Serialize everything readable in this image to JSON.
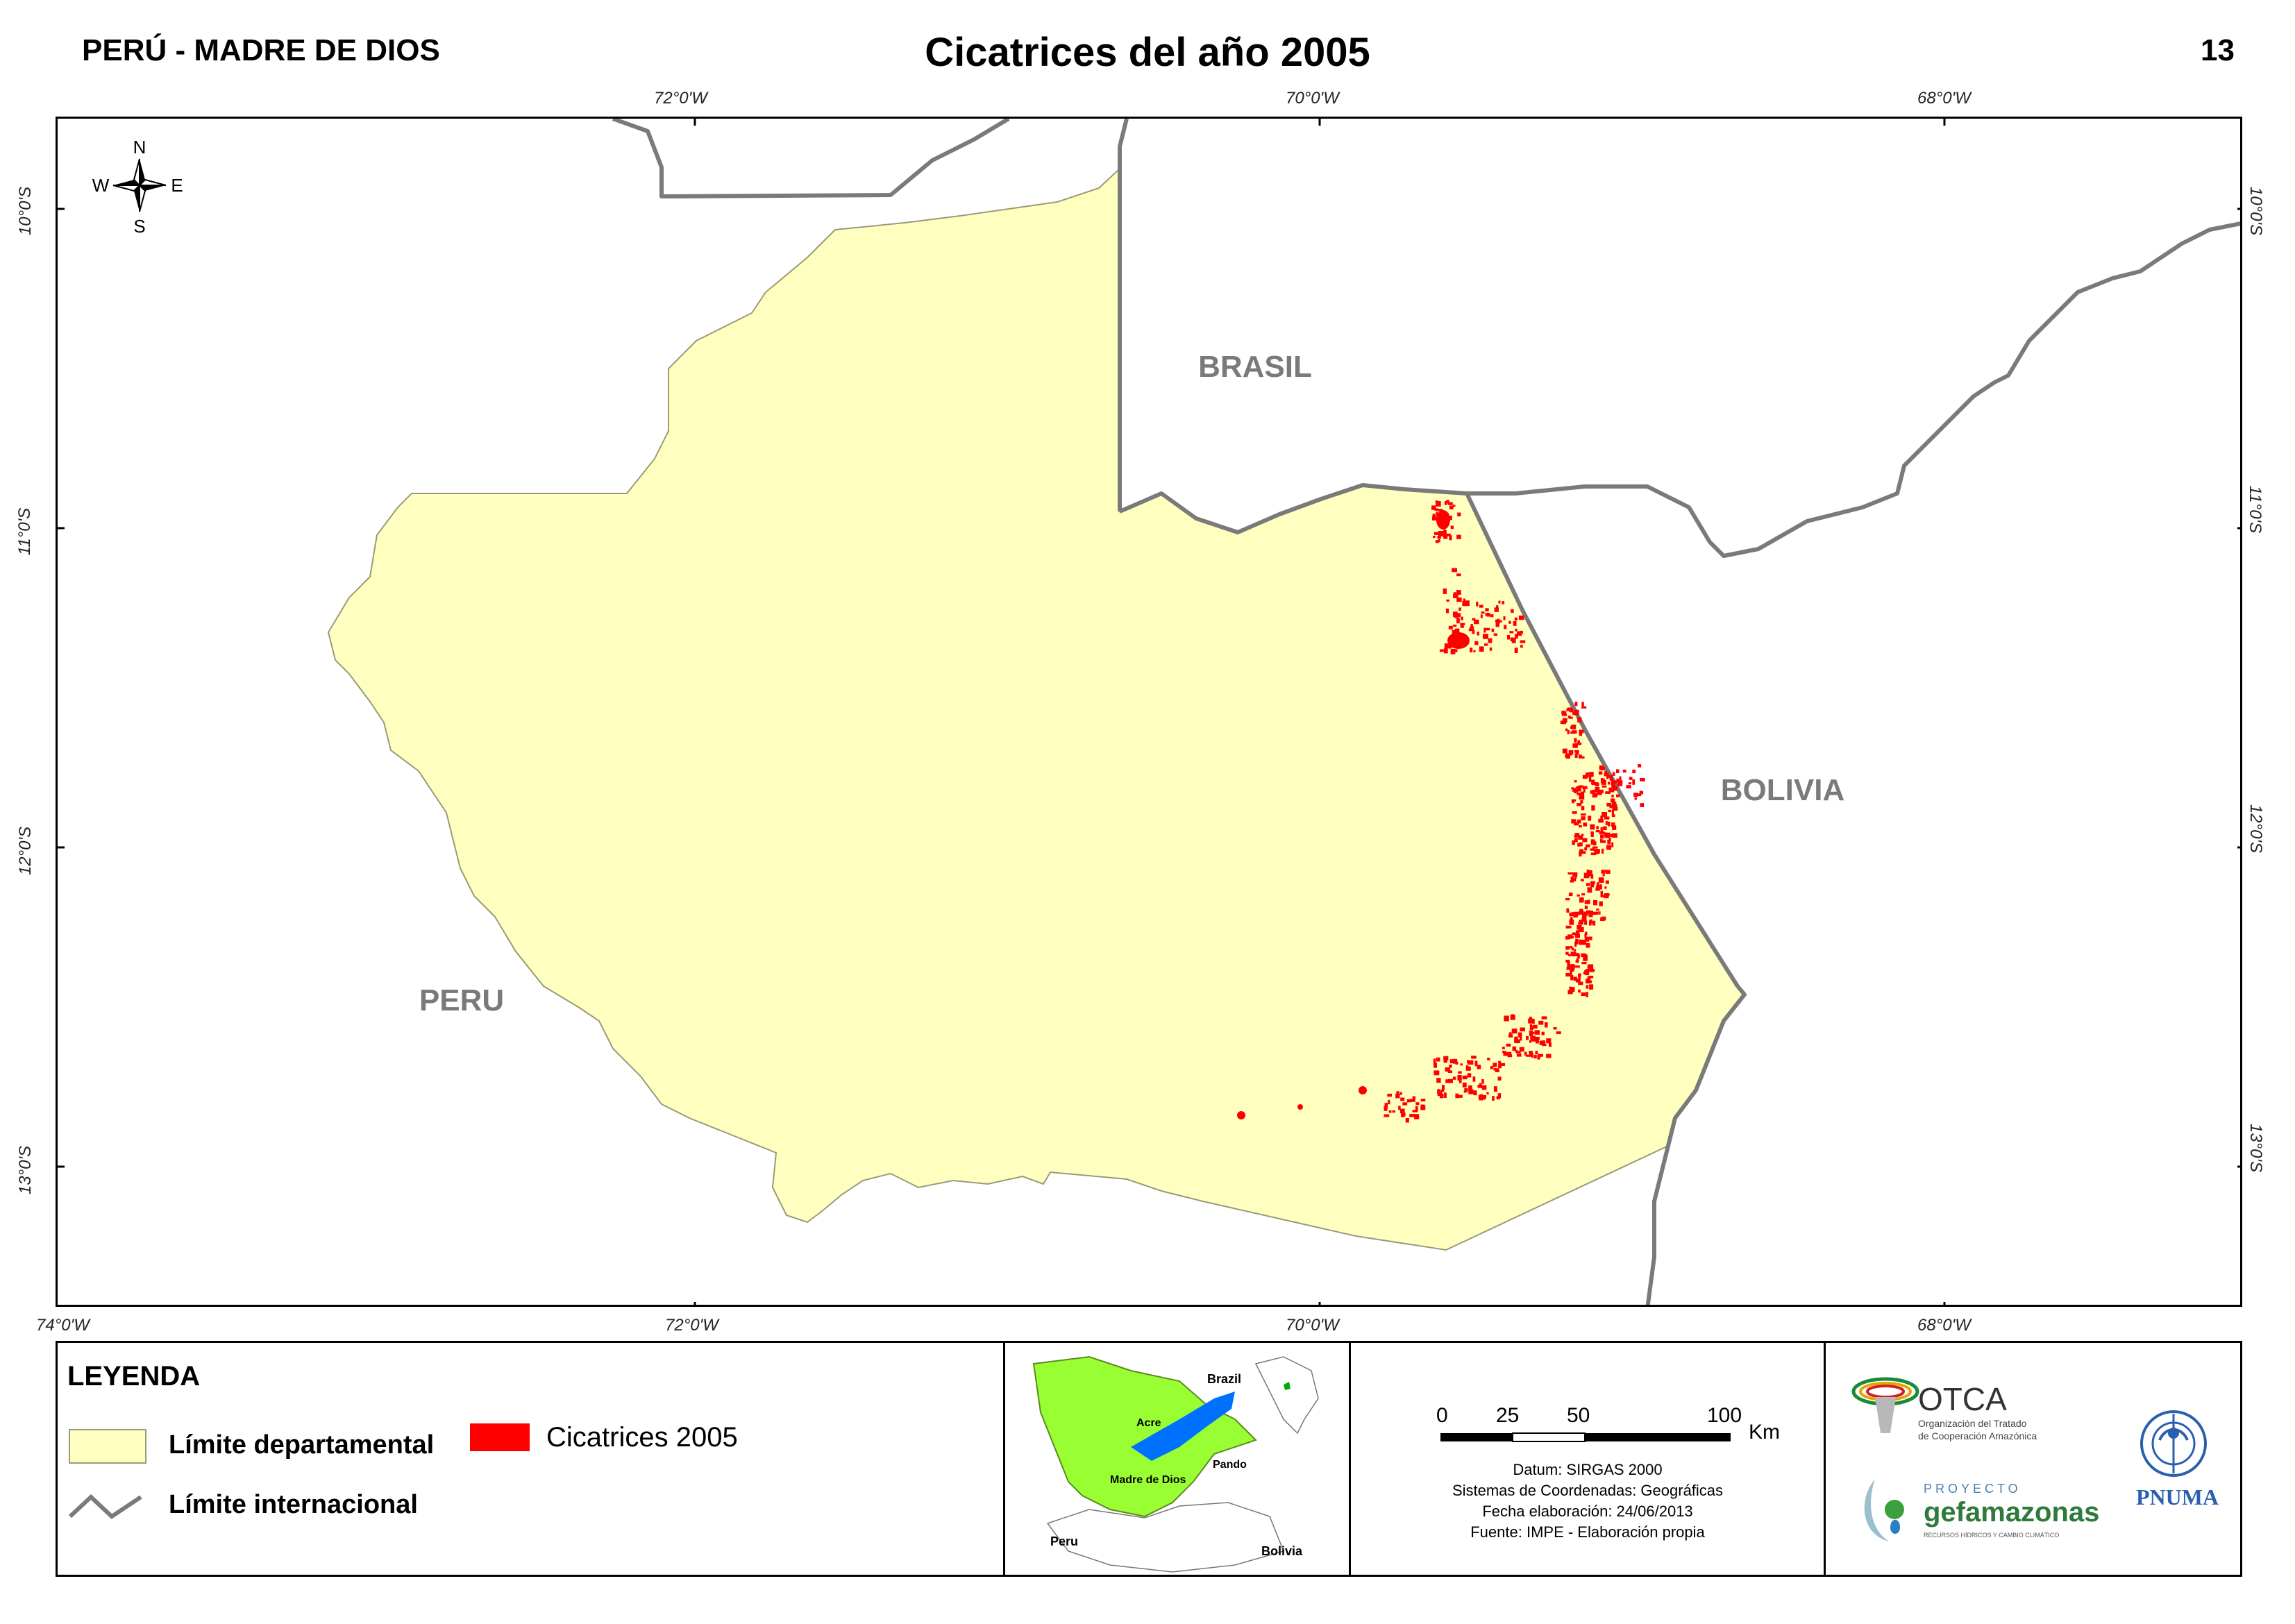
{
  "header": {
    "region": "PERÚ - MADRE DE DIOS",
    "title": "Cicatrices del año 2005",
    "page_number": "13"
  },
  "map": {
    "country_labels": [
      "BRASIL",
      "BOLIVIA",
      "PERU"
    ],
    "compass": {
      "n": "N",
      "s": "S",
      "e": "E",
      "w": "W"
    },
    "longitude_ticks_top": [
      "72°0'W",
      "70°0'W",
      "68°0'W"
    ],
    "longitude_ticks_bottom": [
      "74°0'W",
      "72°0'W",
      "70°0'W",
      "68°0'W"
    ],
    "latitude_ticks": [
      "10°0'S",
      "11°0'S",
      "12°0'S",
      "13°0'S"
    ],
    "colors": {
      "department_fill": "#FFFFC0",
      "scars": "#FF0000",
      "international_border": "#7A7A7A"
    }
  },
  "legend": {
    "title": "LEYENDA",
    "departmental_limit": "Límite departamental",
    "international_limit": "Límite internacional",
    "scars_label": "Cicatrices 2005"
  },
  "inset": {
    "labels": [
      "Brazil",
      "Acre",
      "Pando",
      "Madre de Dios",
      "Peru",
      "Bolivia"
    ],
    "colors": {
      "region": "#99FF33",
      "highlight": "#0070FF"
    }
  },
  "scale": {
    "ticks": [
      "0",
      "25",
      "50",
      "100"
    ],
    "unit": "Km"
  },
  "info": {
    "datum": "Datum: SIRGAS 2000",
    "coords": "Sistemas de Coordenadas: Geográficas",
    "date": "Fecha elaboración: 24/06/2013",
    "source": "Fuente: IMPE - Elaboración propia"
  },
  "logos": {
    "otca_name": "OTCA",
    "otca_sub1": "Organización del Tratado",
    "otca_sub2": "de Cooperación Amazónica",
    "gef_prefix": "PROYECTO",
    "gef_name": "gefamazonas",
    "gef_sub": "RECURSOS HÍDRICOS Y CAMBIO CLIMÁTICO",
    "pnuma": "PNUMA"
  }
}
